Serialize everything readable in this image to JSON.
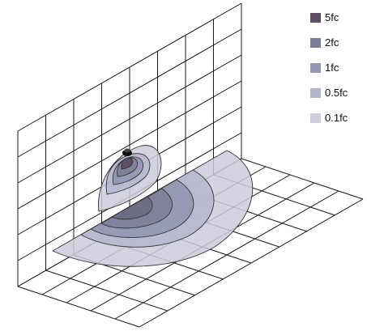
{
  "legend": {
    "items": [
      {
        "label": "5fc",
        "color": "#5e4f66"
      },
      {
        "label": "2fc",
        "color": "#7d7f98"
      },
      {
        "label": "1fc",
        "color": "#9497b0"
      },
      {
        "label": "0.5fc",
        "color": "#b4b6cc"
      },
      {
        "label": "0.1fc",
        "color": "#cdcddc"
      }
    ]
  }
}
